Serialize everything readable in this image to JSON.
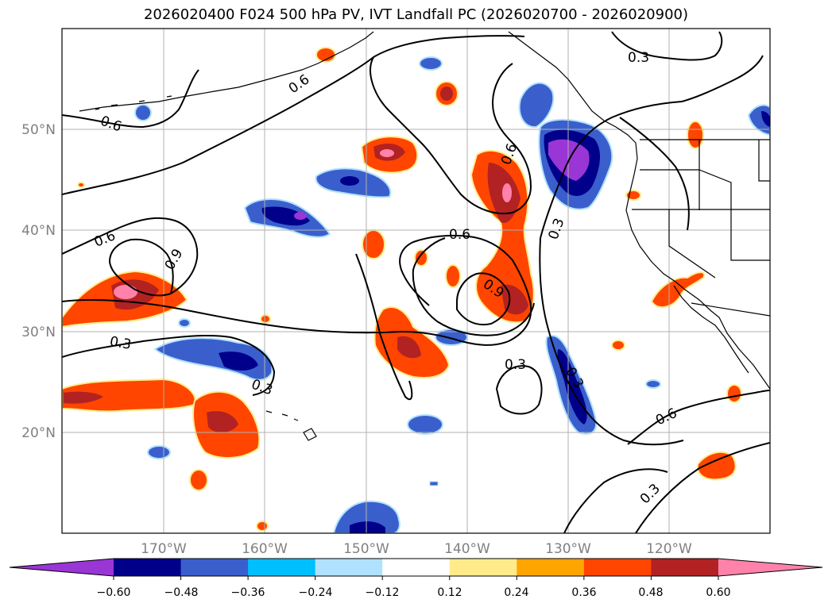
{
  "title": "2026020400 F024 500 hPa PV, IVT Landfall PC (2026020700 - 2026020900)",
  "map": {
    "lat_labels": [
      "50°N",
      "40°N",
      "30°N",
      "20°N"
    ],
    "lon_labels": [
      "170°W",
      "160°W",
      "150°W",
      "140°W",
      "130°W",
      "120°W"
    ],
    "contour_labels": [
      "0.6",
      "0.6",
      "0.6",
      "0.9",
      "0.3",
      "0.3",
      "0.6",
      "0.3",
      "0.9",
      "0.3",
      "0.3",
      "0.3",
      "0.6",
      "0.3",
      "0.6"
    ]
  },
  "colorbar": {
    "tick_labels": [
      "−0.60",
      "−0.48",
      "−0.36",
      "−0.24",
      "−0.12",
      "0.12",
      "0.24",
      "0.36",
      "0.48",
      "0.60"
    ],
    "colors": [
      "#9a35d6",
      "#00008b",
      "#3a5fcd",
      "#00bfff",
      "#b0e2ff",
      "#ffffff",
      "#ffeb8a",
      "#ffa500",
      "#ff4500",
      "#b22222",
      "#ff82ab"
    ]
  }
}
